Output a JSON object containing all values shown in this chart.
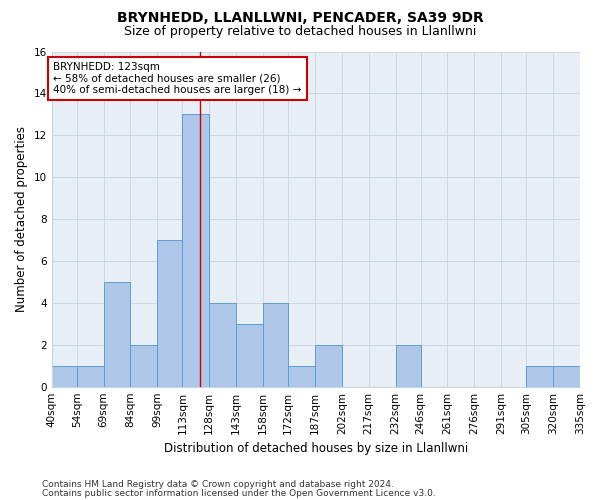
{
  "title": "BRYNHEDD, LLANLLWNI, PENCADER, SA39 9DR",
  "subtitle": "Size of property relative to detached houses in Llanllwni",
  "xlabel": "Distribution of detached houses by size in Llanllwni",
  "ylabel": "Number of detached properties",
  "footnote1": "Contains HM Land Registry data © Crown copyright and database right 2024.",
  "footnote2": "Contains public sector information licensed under the Open Government Licence v3.0.",
  "bin_labels": [
    "40sqm",
    "54sqm",
    "69sqm",
    "84sqm",
    "99sqm",
    "113sqm",
    "128sqm",
    "143sqm",
    "158sqm",
    "172sqm",
    "187sqm",
    "202sqm",
    "217sqm",
    "232sqm",
    "246sqm",
    "261sqm",
    "276sqm",
    "291sqm",
    "305sqm",
    "320sqm",
    "335sqm"
  ],
  "bar_values": [
    1,
    1,
    5,
    2,
    7,
    13,
    4,
    3,
    4,
    1,
    2,
    0,
    0,
    2,
    0,
    0,
    0,
    0,
    1,
    1
  ],
  "bin_edges": [
    40,
    54,
    69,
    84,
    99,
    113,
    128,
    143,
    158,
    172,
    187,
    202,
    217,
    232,
    246,
    261,
    276,
    291,
    305,
    320,
    335
  ],
  "bar_color": "#aec6e8",
  "bar_edge_color": "#5a9fd4",
  "vline_x": 123,
  "vline_color": "#cc0000",
  "annotation_line1": "BRYNHEDD: 123sqm",
  "annotation_line2": "← 58% of detached houses are smaller (26)",
  "annotation_line3": "40% of semi-detached houses are larger (18) →",
  "annotation_box_color": "#ffffff",
  "annotation_box_edge": "#cc0000",
  "ylim": [
    0,
    16
  ],
  "yticks": [
    0,
    2,
    4,
    6,
    8,
    10,
    12,
    14,
    16
  ],
  "grid_color": "#c8d4e0",
  "background_color": "#e8eef5",
  "title_fontsize": 10,
  "subtitle_fontsize": 9,
  "xlabel_fontsize": 8.5,
  "ylabel_fontsize": 8.5,
  "tick_fontsize": 7.5,
  "annotation_fontsize": 7.5,
  "footnote_fontsize": 6.5
}
